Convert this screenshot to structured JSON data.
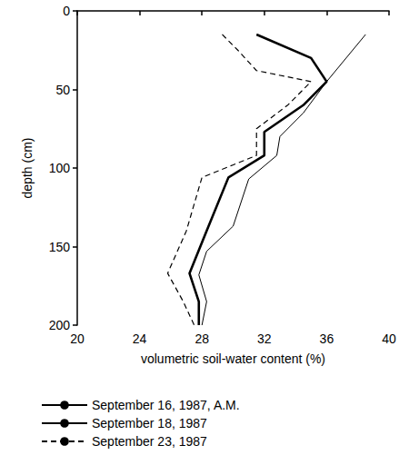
{
  "chart_data": {
    "type": "line",
    "x_label": "volumetric soil-water content (%)",
    "y_label": "depth (cm)",
    "xlim": [
      20,
      40
    ],
    "xticks": [
      20,
      24,
      28,
      32,
      36,
      40
    ],
    "ylim": [
      0,
      200
    ],
    "yticks": [
      0,
      50,
      100,
      150,
      200
    ],
    "grid": false,
    "legend": "bottom",
    "marker": "none",
    "series": [
      {
        "name": "September 16, 1987, A.M.",
        "color": "#000000",
        "line_style": "thin",
        "x": [
          38.5,
          36,
          34.5,
          33,
          32.8,
          31,
          30,
          28.3,
          27.8,
          28.3,
          28
        ],
        "values": [
          15,
          45,
          65,
          80,
          92,
          107,
          137,
          153,
          168,
          185,
          200
        ]
      },
      {
        "name": "September 18, 1987",
        "color": "#000000",
        "line_style": "thick",
        "x": [
          31.5,
          35,
          36,
          34.5,
          32,
          32,
          29.7,
          28.3,
          27.2,
          27.8,
          27.8
        ],
        "values": [
          15,
          30,
          45,
          60,
          77,
          92,
          106,
          140,
          167,
          185,
          200
        ]
      },
      {
        "name": "September 23, 1987",
        "color": "#000000",
        "line_style": "dashed",
        "x": [
          29.3,
          30.3,
          31.5,
          35,
          33.5,
          31.5,
          31.5,
          28,
          27,
          25.8,
          26.8,
          27.5
        ],
        "values": [
          15,
          25,
          38,
          45,
          60,
          75,
          92,
          106,
          140,
          167,
          185,
          200
        ]
      }
    ]
  }
}
